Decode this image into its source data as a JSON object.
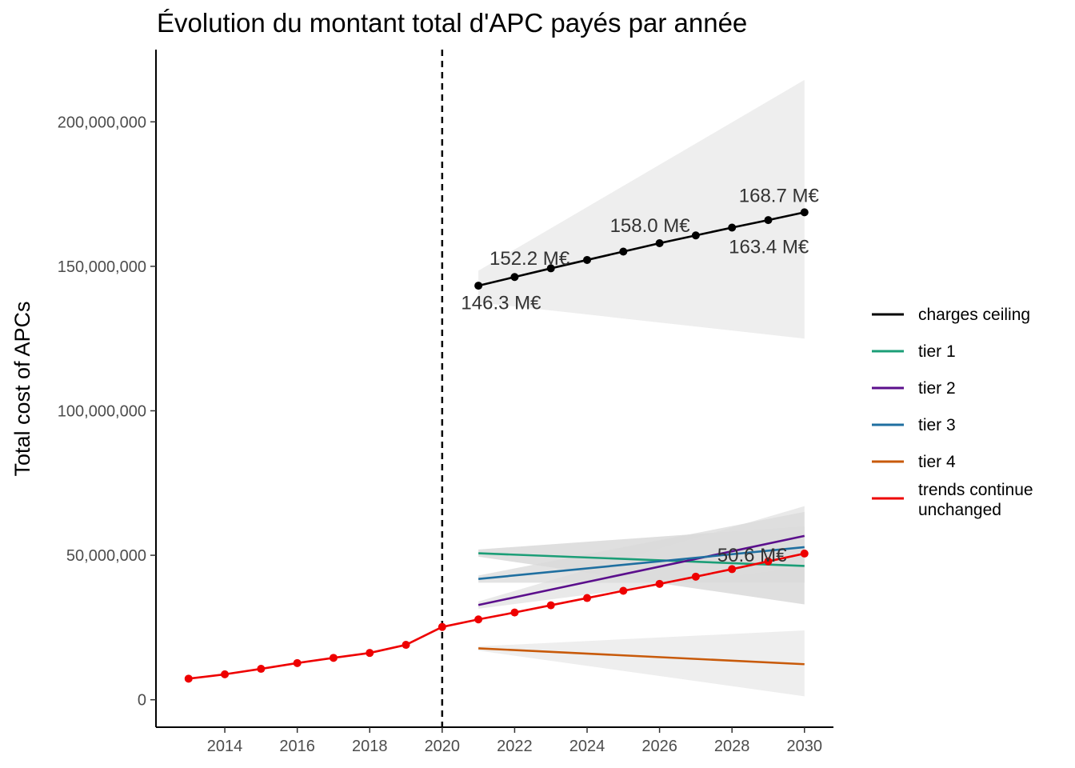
{
  "chart_data": {
    "type": "line",
    "title": "Évolution du montant total d'APC payés par année",
    "xlabel": "",
    "ylabel": "Total cost of APCs",
    "xlim": [
      2012.1,
      2030.8
    ],
    "ylim": [
      -9500000,
      225000000
    ],
    "x_ticks": [
      2014,
      2016,
      2018,
      2020,
      2022,
      2024,
      2026,
      2028,
      2030
    ],
    "y_ticks": [
      0,
      50000000,
      100000000,
      150000000,
      200000000
    ],
    "y_tick_labels": [
      "0",
      "50,000,000",
      "100,000,000",
      "150,000,000",
      "200,000,000"
    ],
    "grid": false,
    "vline": {
      "x": 2020,
      "style": "dashed",
      "color": "#000000"
    },
    "legend_position": "right",
    "series": [
      {
        "name": "charges ceiling",
        "color": "#000000",
        "points": true,
        "x": [
          2021,
          2022,
          2023,
          2024,
          2025,
          2026,
          2027,
          2028,
          2029,
          2030
        ],
        "values": [
          143300000,
          146300000,
          149300000,
          152200000,
          155100000,
          158000000,
          160700000,
          163400000,
          166000000,
          168700000
        ],
        "ribbon": {
          "x": [
            2021,
            2030
          ],
          "lower": [
            137500000,
            125000000
          ],
          "upper": [
            148500000,
            214500000
          ],
          "color": "#e8e8e8"
        }
      },
      {
        "name": "tier 1",
        "color": "#1b9e77",
        "points": false,
        "x": [
          2021,
          2030
        ],
        "values": [
          50700000,
          46300000
        ],
        "ribbon": {
          "x": [
            2021,
            2030
          ],
          "lower": [
            49500000,
            33000000
          ],
          "upper": [
            52000000,
            60000000
          ],
          "color": "#d4d4d4"
        }
      },
      {
        "name": "tier 2",
        "color": "#5b0f8c",
        "points": false,
        "x": [
          2021,
          2030
        ],
        "values": [
          32800000,
          56700000
        ],
        "ribbon": {
          "x": [
            2021,
            2030
          ],
          "lower": [
            31500000,
            46000000
          ],
          "upper": [
            34000000,
            67000000
          ],
          "color": "#e2e2e2"
        }
      },
      {
        "name": "tier 3",
        "color": "#1f6fa0",
        "points": false,
        "x": [
          2021,
          2030
        ],
        "values": [
          41800000,
          52800000
        ],
        "ribbon": {
          "x": [
            2021,
            2030
          ],
          "lower": [
            40500000,
            40500000
          ],
          "upper": [
            43000000,
            65000000
          ],
          "color": "#dadada"
        }
      },
      {
        "name": "tier 4",
        "color": "#c85a0a",
        "points": false,
        "x": [
          2021,
          2030
        ],
        "values": [
          17800000,
          12300000
        ],
        "ribbon": {
          "x": [
            2021,
            2030
          ],
          "lower": [
            17000000,
            1200000
          ],
          "upper": [
            18500000,
            24000000
          ],
          "color": "#e8e8e8"
        }
      },
      {
        "name": "trends continue\nunchanged",
        "color": "#ee0000",
        "points": true,
        "x": [
          2013,
          2014,
          2015,
          2016,
          2017,
          2018,
          2019,
          2020,
          2021,
          2022,
          2023,
          2024,
          2025,
          2026,
          2027,
          2028,
          2029,
          2030
        ],
        "values": [
          7300000,
          8800000,
          10700000,
          12700000,
          14500000,
          16200000,
          19000000,
          25200000,
          27800000,
          30200000,
          32700000,
          35200000,
          37700000,
          40100000,
          42600000,
          45200000,
          47900000,
          50600000
        ]
      }
    ],
    "annotations": [
      {
        "text": "146.3 M€",
        "x": 2022,
        "y": 146300000,
        "dx": -67,
        "dy": 40
      },
      {
        "text": "152.2 M€",
        "x": 2024,
        "y": 152200000,
        "dx": -122,
        "dy": 6
      },
      {
        "text": "158.0 M€",
        "x": 2026,
        "y": 158000000,
        "dx": -62,
        "dy": -14
      },
      {
        "text": "163.4 M€",
        "x": 2028,
        "y": 163400000,
        "dx": -4,
        "dy": 32
      },
      {
        "text": "168.7 M€",
        "x": 2030,
        "y": 168700000,
        "dx": -82,
        "dy": -13
      },
      {
        "text": "50.6 M€",
        "x": 2030,
        "y": 50600000,
        "dx": -109,
        "dy": 10
      }
    ]
  }
}
